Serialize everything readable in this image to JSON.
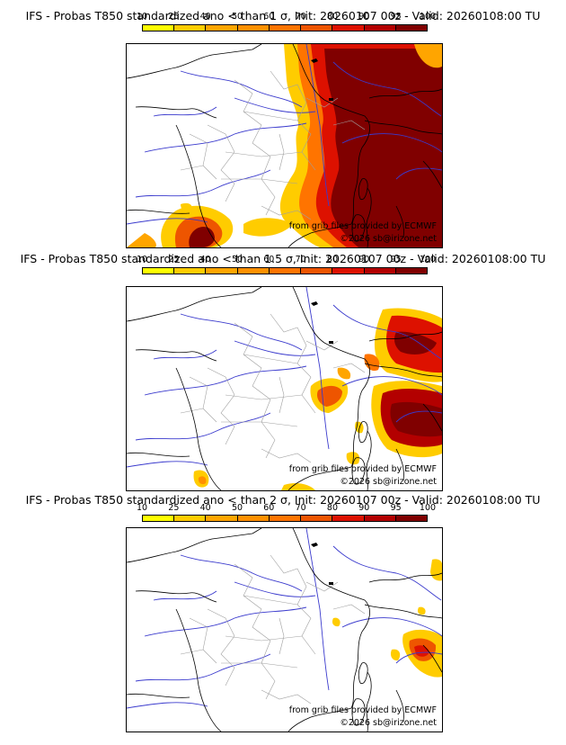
{
  "legend": {
    "ticks": [
      "10",
      "25",
      "40",
      "50",
      "60",
      "70",
      "80",
      "90",
      "95",
      "100"
    ],
    "colors": [
      "#ffff00",
      "#ffcc00",
      "#ffa500",
      "#ff9000",
      "#ff7400",
      "#ee5500",
      "#dd1100",
      "#b30000",
      "#800000"
    ]
  },
  "panels": [
    {
      "title": "IFS - Probas T850  standardized ano < than 1 σ, Init: 20260107 00z - Valid: 20260108:00 TU",
      "credit_source": "from grib files provided by ECMWF",
      "credit_copy": "©2026 sb@irizone.net"
    },
    {
      "title": "IFS - Probas T850  standardized ano < than 1.5 σ, Init: 20260107 00z - Valid: 20260108:00 TU",
      "credit_source": "from grib files provided by ECMWF",
      "credit_copy": "©2026 sb@irizone.net"
    },
    {
      "title": "IFS - Probas T850  standardized ano < than 2 σ, Init: 20260107 00z - Valid: 20260108:00 TU",
      "credit_source": "from grib files provided by ECMWF",
      "credit_copy": "©2026 sb@irizone.net"
    }
  ]
}
